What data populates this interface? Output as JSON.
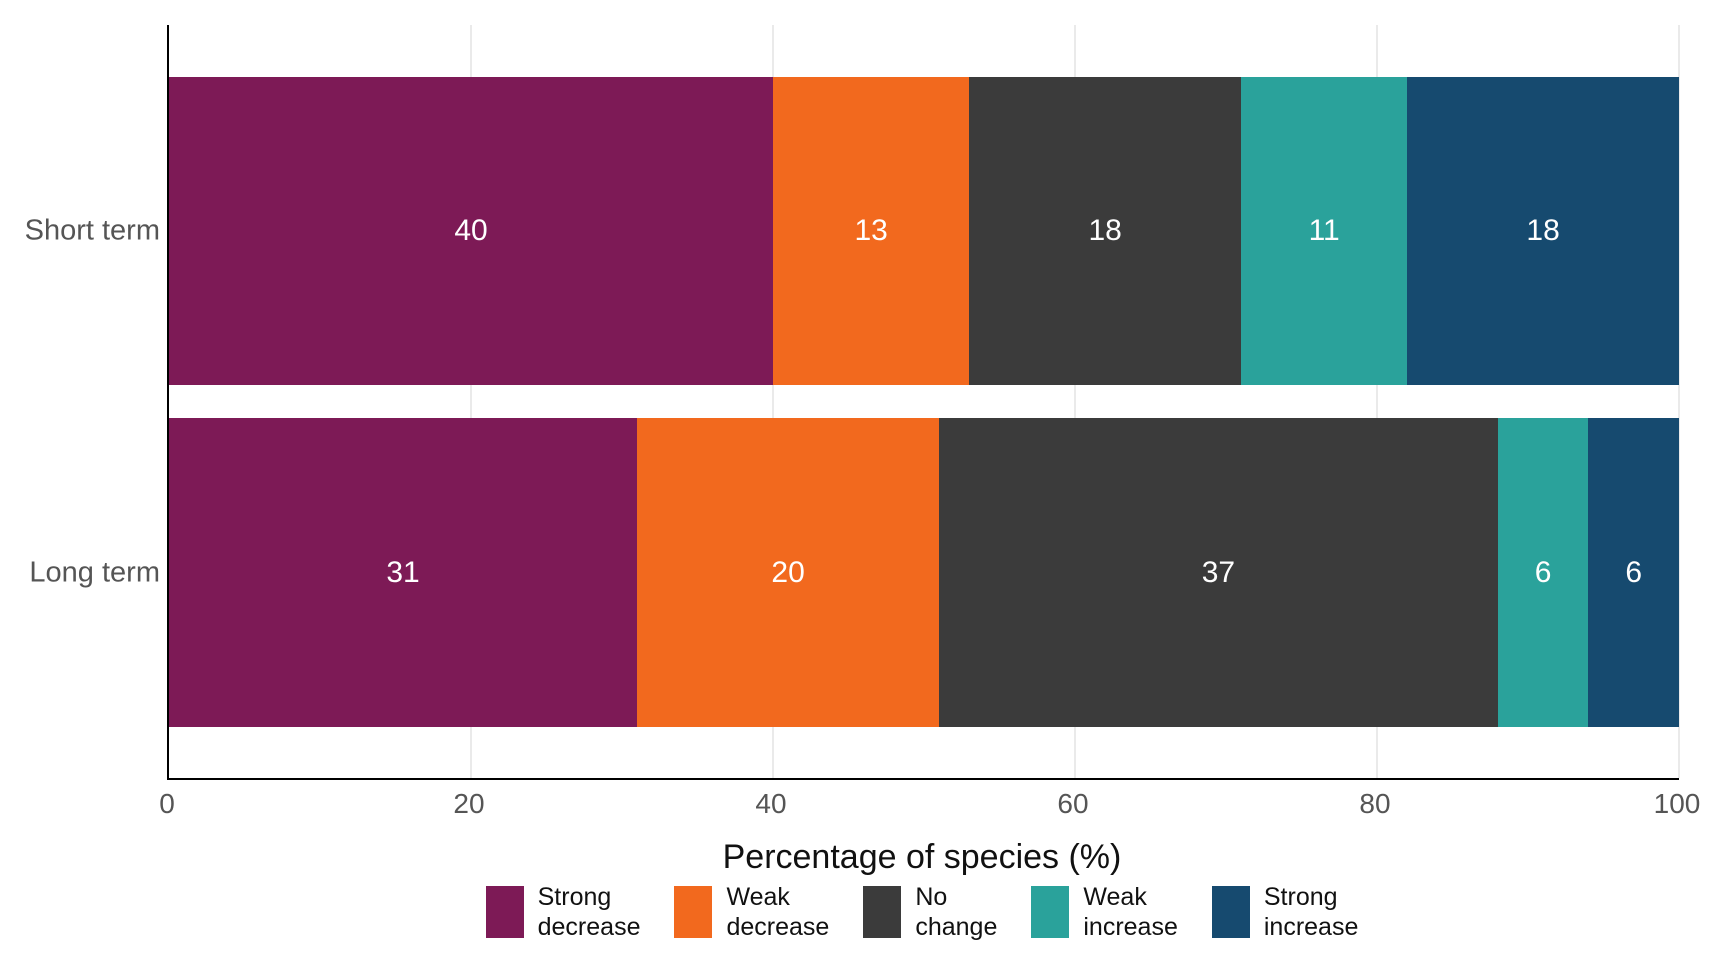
{
  "chart_data": {
    "type": "bar",
    "orientation": "horizontal",
    "stacked": true,
    "title": "",
    "xlabel": "Percentage of species (%)",
    "ylabel": "",
    "xlim": [
      0,
      100
    ],
    "x_ticks": [
      "0",
      "20",
      "40",
      "60",
      "80",
      "100"
    ],
    "x_tick_values": [
      0,
      20,
      40,
      60,
      80,
      100
    ],
    "grid": "vertical light gray, behind bars",
    "legend_position": "bottom center",
    "categories": [
      "Short term",
      "Long term"
    ],
    "series": [
      {
        "name": "Strong decrease",
        "legend_label": "Strong\ndecrease",
        "color": "#7D1A56",
        "values": [
          40,
          31
        ]
      },
      {
        "name": "Weak decrease",
        "legend_label": "Weak\ndecrease",
        "color": "#F2691E",
        "values": [
          13,
          20
        ]
      },
      {
        "name": "No change",
        "legend_label": "No\nchange",
        "color": "#3B3B3B",
        "values": [
          18,
          37
        ]
      },
      {
        "name": "Weak increase",
        "legend_label": "Weak\nincrease",
        "color": "#2AA29B",
        "values": [
          11,
          6
        ]
      },
      {
        "name": "Strong increase",
        "legend_label": "Strong\nincrease",
        "color": "#164A6F",
        "values": [
          18,
          6
        ]
      }
    ],
    "bar_value_labels_color": "#ffffff"
  },
  "colors": {
    "axis_line": "#000000",
    "gridline": "#EAEAEA",
    "tick_label": "#555555",
    "category_label": "#555555",
    "axis_title": "#111111",
    "background": "#ffffff"
  }
}
